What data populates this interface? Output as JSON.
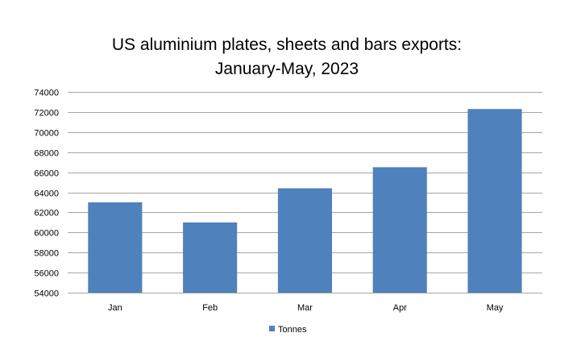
{
  "chart_data": {
    "type": "bar",
    "title_lines": [
      "US aluminium plates, sheets and bars exports:",
      "January-May, 2023"
    ],
    "title": "US aluminium plates, sheets and bars exports: January-May, 2023",
    "categories": [
      "Jan",
      "Feb",
      "Mar",
      "Apr",
      "May"
    ],
    "series": [
      {
        "name": "Tonnes",
        "color": "#4F81BD",
        "values": [
          63000,
          61000,
          64400,
          66500,
          72300
        ]
      }
    ],
    "xlabel": "",
    "ylabel": "",
    "ylim": [
      54000,
      74000
    ],
    "ytick_step": 2000,
    "yticks": [
      "54000",
      "56000",
      "58000",
      "60000",
      "62000",
      "64000",
      "66000",
      "68000",
      "70000",
      "72000",
      "74000"
    ],
    "grid": true,
    "legend_position": "bottom",
    "gridline_color": "#A6A6A6"
  }
}
